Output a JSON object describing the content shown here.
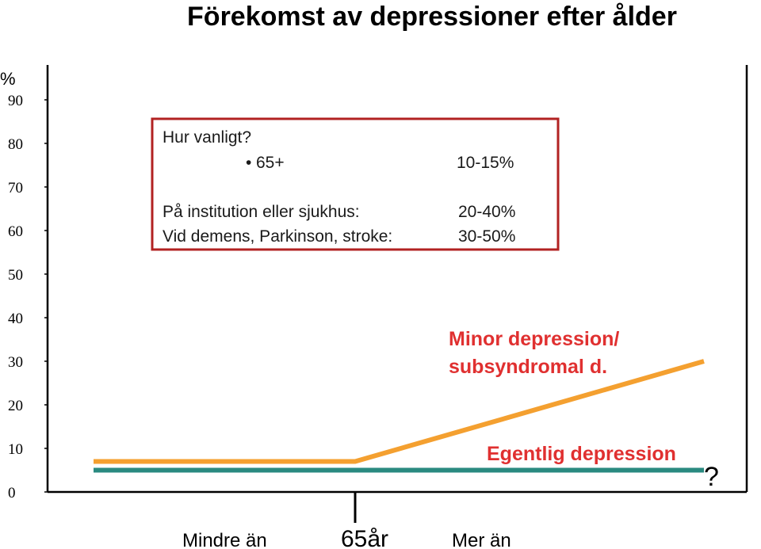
{
  "chart_data": {
    "type": "line",
    "title": "Förekomst av  depressioner efter ålder",
    "ylabel": "%",
    "ylim": [
      0,
      90
    ],
    "y_ticks": [
      "0",
      "10",
      "20",
      "30",
      "40",
      "50",
      "60",
      "70",
      "80",
      "90"
    ],
    "x_labels": {
      "left": "Mindre än",
      "center": "65år",
      "right": "Mer än"
    },
    "grid": false,
    "series": [
      {
        "name": "Minor depression/ subsyndromal d.",
        "name_lines": [
          "Minor depression/",
          "subsyndromal d."
        ],
        "color": "#f4a030",
        "points": [
          [
            0,
            7
          ],
          [
            1,
            7
          ],
          [
            2,
            30
          ]
        ]
      },
      {
        "name": "Egentlig depression",
        "name_lines": [
          "Egentlig depression"
        ],
        "color": "#2a8a80",
        "points": [
          [
            0,
            5
          ],
          [
            1,
            5
          ],
          [
            2,
            5
          ]
        ]
      }
    ],
    "end_mark": "?",
    "annotation_box": {
      "heading": "Hur vanligt?",
      "bullet_label": "65+",
      "bullet_value": "10-15%",
      "rows": [
        {
          "label": "På institution eller sjukhus:",
          "value": "20-40%"
        },
        {
          "label": "Vid demens, Parkinson, stroke:",
          "value": "30-50%"
        }
      ],
      "border_color": "#b22222"
    },
    "label_color": "#e03030"
  }
}
